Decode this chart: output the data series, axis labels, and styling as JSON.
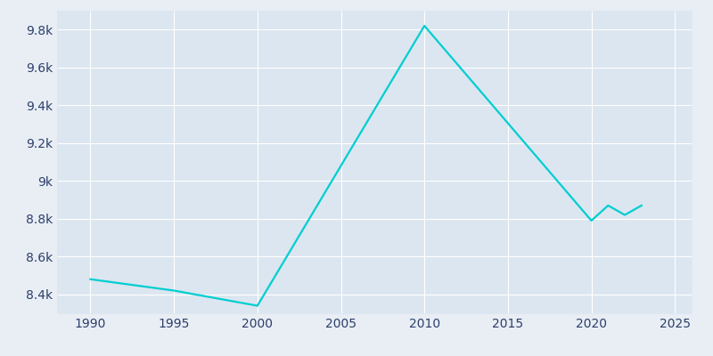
{
  "years": [
    1990,
    1995,
    2000,
    2010,
    2020,
    2021,
    2022,
    2023
  ],
  "population": [
    8480,
    8420,
    8340,
    9820,
    8790,
    8870,
    8820,
    8870
  ],
  "line_color": "#00CED1",
  "line_width": 1.6,
  "bg_color": "#E8EEF4",
  "plot_bg_color": "#dce6f0",
  "xlabel": "",
  "ylabel": "",
  "xlim": [
    1988,
    2026
  ],
  "ylim": [
    8300,
    9900
  ],
  "ytick_labels": [
    "8.4k",
    "8.6k",
    "8.8k",
    "9k",
    "9.2k",
    "9.4k",
    "9.6k",
    "9.8k"
  ],
  "ytick_values": [
    8400,
    8600,
    8800,
    9000,
    9200,
    9400,
    9600,
    9800
  ],
  "xtick_values": [
    1990,
    1995,
    2000,
    2005,
    2010,
    2015,
    2020,
    2025
  ],
  "grid_color": "#ffffff",
  "tick_color": "#2c3e6b",
  "spine_color": "#dce6f0"
}
